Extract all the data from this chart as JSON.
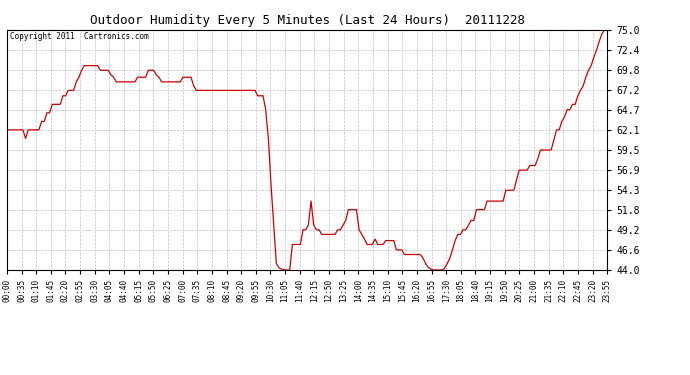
{
  "title": "Outdoor Humidity Every 5 Minutes (Last 24 Hours)  20111228",
  "copyright": "Copyright 2011  Cartronics.com",
  "line_color": "#cc0000",
  "bg_color": "#ffffff",
  "plot_bg_color": "#ffffff",
  "grid_color": "#b0b0b0",
  "ylim": [
    44.0,
    75.0
  ],
  "yticks": [
    44.0,
    46.6,
    49.2,
    51.8,
    54.3,
    56.9,
    59.5,
    62.1,
    64.7,
    67.2,
    69.8,
    72.4,
    75.0
  ],
  "xtick_labels": [
    "00:00",
    "00:35",
    "01:10",
    "01:45",
    "02:20",
    "02:55",
    "03:30",
    "04:05",
    "04:40",
    "05:15",
    "05:50",
    "06:25",
    "07:00",
    "07:35",
    "08:10",
    "08:45",
    "09:20",
    "09:55",
    "10:30",
    "11:05",
    "11:40",
    "12:15",
    "12:50",
    "13:25",
    "14:00",
    "14:35",
    "15:10",
    "15:45",
    "16:20",
    "16:55",
    "17:30",
    "18:05",
    "18:40",
    "19:15",
    "19:50",
    "20:25",
    "21:00",
    "21:35",
    "22:10",
    "22:45",
    "23:20",
    "23:55"
  ],
  "humidity_data": [
    62.1,
    62.1,
    62.1,
    62.1,
    62.1,
    62.1,
    62.1,
    61.0,
    62.1,
    62.1,
    62.1,
    62.1,
    62.1,
    63.2,
    63.2,
    64.3,
    64.3,
    65.4,
    65.4,
    65.4,
    65.4,
    66.5,
    66.5,
    67.2,
    67.2,
    67.2,
    68.3,
    68.9,
    69.8,
    70.4,
    70.4,
    70.4,
    70.4,
    70.4,
    70.4,
    69.8,
    69.8,
    69.8,
    69.8,
    69.2,
    68.9,
    68.3,
    68.3,
    68.3,
    68.3,
    68.3,
    68.3,
    68.3,
    68.3,
    68.9,
    68.9,
    68.9,
    68.9,
    69.8,
    69.8,
    69.8,
    69.2,
    68.9,
    68.3,
    68.3,
    68.3,
    68.3,
    68.3,
    68.3,
    68.3,
    68.3,
    68.9,
    68.9,
    68.9,
    68.9,
    67.8,
    67.2,
    67.2,
    67.2,
    67.2,
    67.2,
    67.2,
    67.2,
    67.2,
    67.2,
    67.2,
    67.2,
    67.2,
    67.2,
    67.2,
    67.2,
    67.2,
    67.2,
    67.2,
    67.2,
    67.2,
    67.2,
    67.2,
    67.2,
    66.5,
    66.5,
    66.5,
    64.7,
    61.0,
    55.0,
    50.0,
    44.8,
    44.3,
    44.1,
    44.0,
    44.0,
    44.0,
    47.3,
    47.3,
    47.3,
    47.3,
    49.2,
    49.2,
    49.8,
    52.9,
    49.8,
    49.2,
    49.2,
    48.6,
    48.6,
    48.6,
    48.6,
    48.6,
    48.6,
    49.2,
    49.2,
    49.8,
    50.4,
    51.8,
    51.8,
    51.8,
    51.8,
    49.2,
    48.6,
    48.0,
    47.3,
    47.3,
    47.3,
    48.0,
    47.3,
    47.3,
    47.3,
    47.8,
    47.8,
    47.8,
    47.8,
    46.6,
    46.6,
    46.6,
    46.0,
    46.0,
    46.0,
    46.0,
    46.0,
    46.0,
    46.0,
    45.5,
    44.8,
    44.3,
    44.1,
    44.0,
    44.0,
    44.0,
    44.0,
    44.2,
    44.8,
    45.5,
    46.6,
    47.8,
    48.6,
    48.6,
    49.2,
    49.2,
    49.8,
    50.4,
    50.4,
    51.8,
    51.8,
    51.8,
    51.8,
    52.9,
    52.9,
    52.9,
    52.9,
    52.9,
    52.9,
    52.9,
    54.3,
    54.3,
    54.3,
    54.3,
    55.6,
    56.9,
    56.9,
    56.9,
    56.9,
    57.5,
    57.5,
    57.5,
    58.4,
    59.5,
    59.5,
    59.5,
    59.5,
    59.5,
    60.8,
    62.1,
    62.1,
    63.2,
    63.8,
    64.7,
    64.7,
    65.4,
    65.4,
    66.5,
    67.2,
    67.8,
    68.9,
    69.8,
    70.4,
    71.5,
    72.4,
    73.5,
    74.5,
    75.0,
    75.2
  ]
}
